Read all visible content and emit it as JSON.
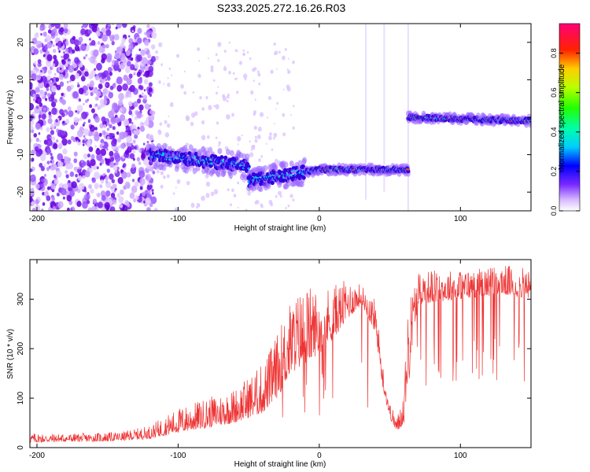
{
  "title": "S233.2025.272.16.26.R03",
  "chart_data": [
    {
      "type": "heatmap",
      "xlabel": "Height of straight line (km)",
      "ylabel": "Frequency (Hz)",
      "xlim": [
        -205,
        150
      ],
      "ylim": [
        -25,
        25
      ],
      "x_ticks": [
        -200,
        -100,
        0,
        100
      ],
      "y_ticks": [
        -20,
        -10,
        0,
        10,
        20
      ],
      "colorbar": {
        "label": "Normalized spectral amplitude",
        "range": [
          0,
          0.95
        ],
        "ticks": [
          0.0,
          0.2,
          0.4,
          0.6,
          0.8
        ]
      },
      "features": [
        {
          "segment": "noise",
          "x": [
            -205,
            -120
          ],
          "freq_center": 0
        },
        {
          "segment": "doppler-trace",
          "x": [
            -120,
            -50
          ],
          "freq": [
            -10,
            -13
          ]
        },
        {
          "segment": "doppler-trace",
          "x": [
            -50,
            0
          ],
          "freq": [
            -17,
            -14
          ]
        },
        {
          "segment": "doppler-trace",
          "x": [
            0,
            63
          ],
          "freq": [
            -14,
            -14
          ]
        },
        {
          "segment": "doppler-trace",
          "x": [
            63,
            150
          ],
          "freq": [
            0,
            -1
          ]
        }
      ]
    },
    {
      "type": "line",
      "xlabel": "Height of straight line (km)",
      "ylabel": "SNR (10 * v/v)",
      "xlim": [
        -205,
        150
      ],
      "ylim": [
        0,
        380
      ],
      "x_ticks": [
        -200,
        -100,
        0,
        100
      ],
      "y_ticks": [
        0,
        100,
        200,
        300
      ],
      "color": "#ee3333",
      "envelope": {
        "x": [
          -205,
          -180,
          -160,
          -140,
          -120,
          -100,
          -80,
          -60,
          -40,
          -30,
          -20,
          -10,
          0,
          10,
          20,
          30,
          40,
          45,
          50,
          55,
          60,
          63,
          70,
          100,
          130,
          150
        ],
        "base": [
          10,
          12,
          12,
          14,
          18,
          30,
          40,
          50,
          70,
          100,
          150,
          170,
          190,
          220,
          260,
          290,
          230,
          120,
          60,
          30,
          50,
          150,
          290,
          300,
          310,
          300
        ],
        "peak": [
          30,
          28,
          30,
          32,
          45,
          80,
          100,
          120,
          170,
          230,
          300,
          330,
          320,
          330,
          340,
          330,
          300,
          170,
          90,
          60,
          120,
          300,
          360,
          360,
          370,
          360
        ]
      }
    }
  ]
}
